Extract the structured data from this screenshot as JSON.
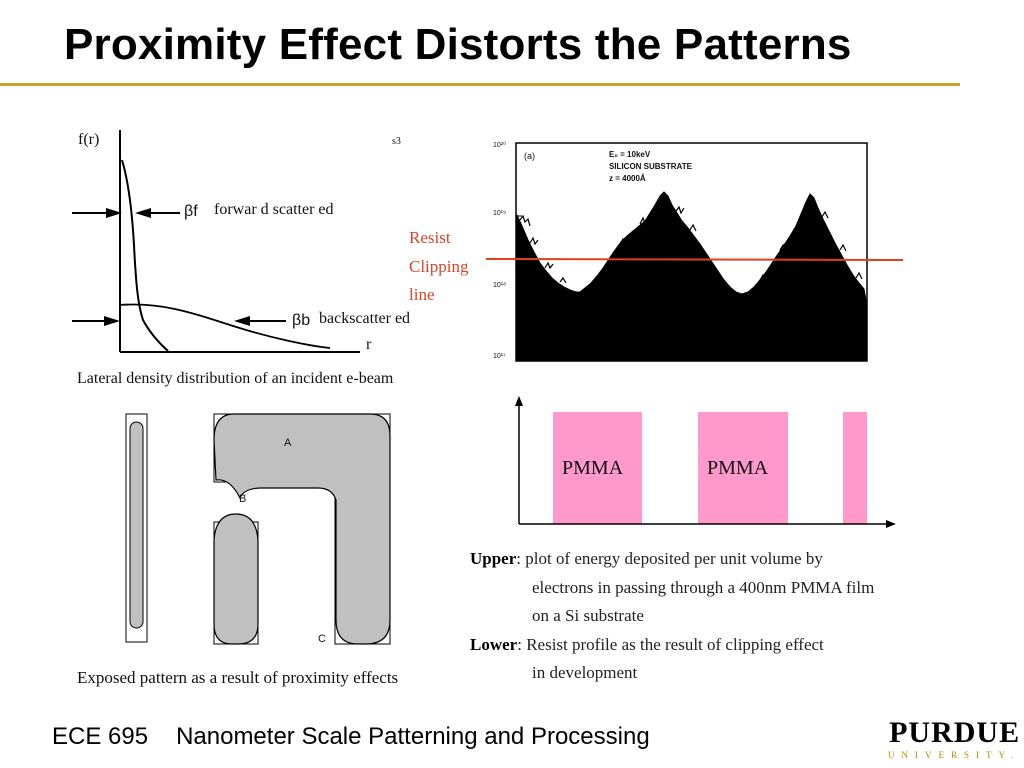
{
  "slide": {
    "title": "Proximity Effect Distorts the Patterns"
  },
  "colors": {
    "title_rule": "#c9a227",
    "clipping_line": "#e0401a",
    "pmma_fill": "#ff99cc",
    "pattern_fill": "#c0c0c0"
  },
  "density_plot": {
    "y_label": "f(r)",
    "x_label": "r",
    "corner_tag": "s3",
    "forward_symbol": "βf",
    "forward_label": "forwar d scatter ed",
    "back_symbol": "βb",
    "back_label": "backscatter ed",
    "caption": "Lateral density distribution of an incident e-beam"
  },
  "energy_plot": {
    "panel_label": "(a)",
    "info_line1": "E₀ = 10keV",
    "info_line2": "SILICON SUBSTRATE",
    "info_line3": "z = 4000Å",
    "y_tick_top": "10²⁰",
    "y_tick_19": "10¹⁹",
    "y_tick_18": "10¹⁸",
    "y_tick_17": "10¹⁷",
    "clip_label_1": "Resist",
    "clip_label_2": "Clipping",
    "clip_label_3": "line"
  },
  "pmma_plot": {
    "label_1": "PMMA",
    "label_2": "PMMA"
  },
  "pattern": {
    "label_a": "A",
    "label_b": "B",
    "label_c": "C",
    "caption": "Exposed pattern as a result of proximity effects"
  },
  "description": {
    "upper_label": "Upper",
    "upper_line1": ": plot of energy deposited per unit volume by",
    "upper_line2": "electrons in passing through a 400nm PMMA film",
    "upper_line3": "on a Si substrate",
    "lower_label": "Lower",
    "lower_line1": ": Resist profile as the result of clipping effect",
    "lower_line2": "in development"
  },
  "footer": {
    "course_code": "ECE 695",
    "course_name": "Nanometer Scale Patterning and Processing",
    "logo_main": "PURDUE",
    "logo_sub": "UNIVERSITY."
  }
}
